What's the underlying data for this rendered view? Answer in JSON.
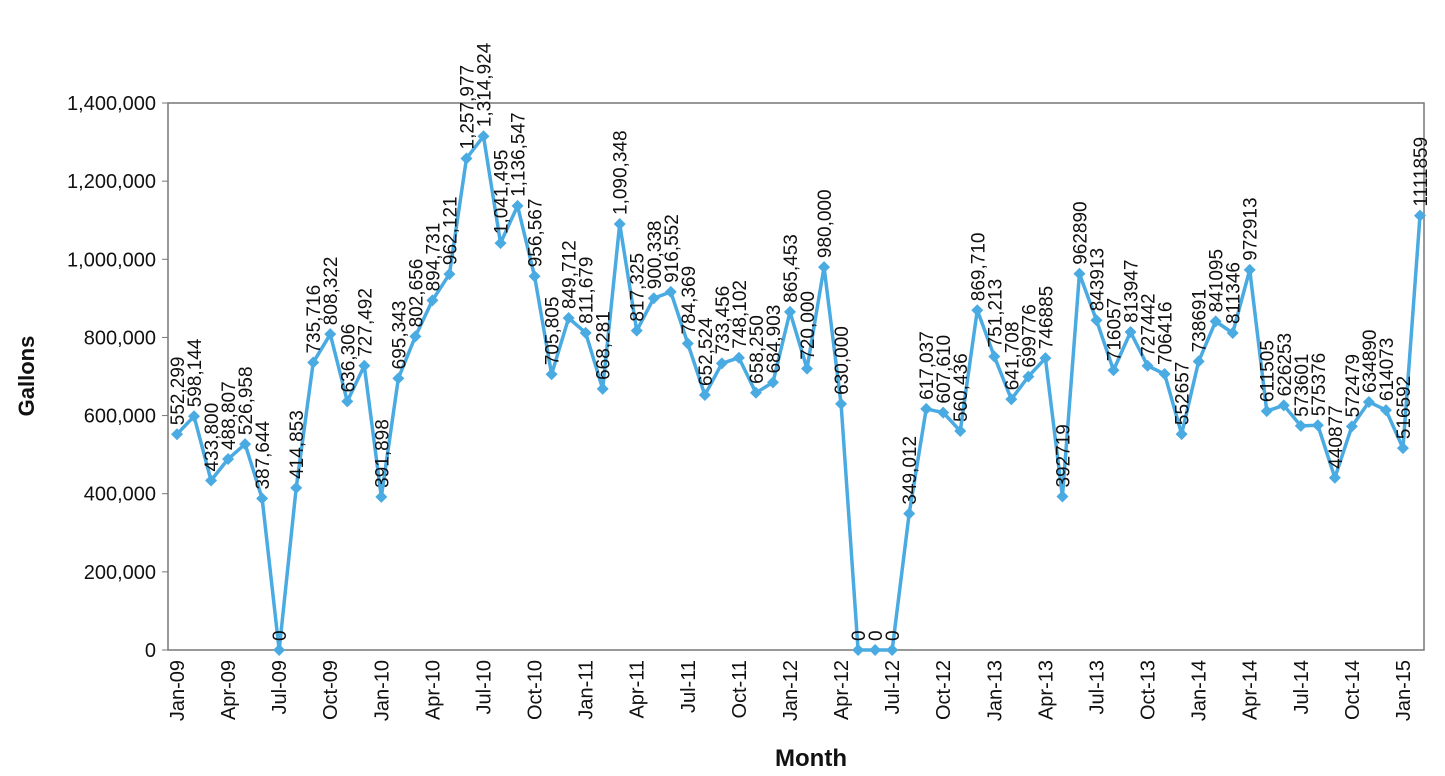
{
  "chart_data": {
    "type": "line",
    "x_label": "Month",
    "y_label": "Gallons",
    "categories": [
      "Jan-09",
      null,
      null,
      "Apr-09",
      null,
      null,
      "Jul-09",
      null,
      null,
      "Oct-09",
      null,
      null,
      "Jan-10",
      null,
      null,
      "Apr-10",
      null,
      null,
      "Jul-10",
      null,
      null,
      "Oct-10",
      null,
      null,
      "Jan-11",
      null,
      null,
      "Apr-11",
      null,
      null,
      "Jul-11",
      null,
      null,
      "Oct-11",
      null,
      null,
      "Jan-12",
      null,
      null,
      "Apr-12",
      null,
      null,
      "Jul-12",
      null,
      null,
      "Oct-12",
      null,
      null,
      "Jan-13",
      null,
      null,
      "Apr-13",
      null,
      null,
      "Jul-13",
      null,
      null,
      "Oct-13",
      null,
      null,
      "Jan-14",
      null,
      null,
      "Apr-14",
      null,
      null,
      "Jul-14",
      null,
      null,
      "Oct-14",
      null,
      null,
      "Jan-15",
      null
    ],
    "series": [
      {
        "color": "#4aaae2",
        "values": [
          552299,
          598144,
          433800,
          488807,
          526958,
          387644,
          0,
          414853,
          735716,
          808322,
          636306,
          727492,
          391898,
          695343,
          802656,
          894731,
          962121,
          1257977,
          1314924,
          1041495,
          1136547,
          956567,
          705805,
          849712,
          811679,
          668281,
          1090348,
          817325,
          900338,
          916552,
          784369,
          652524,
          733456,
          748102,
          658250,
          684903,
          865453,
          720000,
          980000,
          630000,
          0,
          0,
          0,
          349012,
          617037,
          607610,
          560436,
          869710,
          751213,
          641708,
          699776,
          746885,
          392719,
          962890,
          843913,
          716057,
          813947,
          727442,
          706416,
          552657,
          738691,
          841095,
          811346,
          972913,
          611505,
          626253,
          573601,
          575376,
          440877,
          572479,
          634890,
          614073,
          516592,
          1111859
        ],
        "value_labels": [
          "552,299",
          "598,144",
          "433,800",
          "488,807",
          "526,958",
          "387,644",
          "0",
          "414,853",
          "735,716",
          "808,322",
          "636,306",
          "727,492",
          "391,898",
          "695,343",
          "802,656",
          "894,731",
          "962,121",
          "1,257,977",
          "1,314,924",
          "1,041,495",
          "1,136,547",
          "956,567",
          "705,805",
          "849,712",
          "811,679",
          "668,281",
          "1,090,348",
          "817,325",
          "900,338",
          "916,552",
          "784,369",
          "652,524",
          "733,456",
          "748,102",
          "658,250",
          "684,903",
          "865,453",
          "720,000",
          "980,000",
          "630,000",
          "0",
          "0",
          "0",
          "349,012",
          "617,037",
          "607,610",
          "560,436",
          "869,710",
          "751,213",
          "641,708",
          "699776",
          "746885",
          "392719",
          "962890",
          "843913",
          "716057",
          "813947",
          "727442",
          "706416",
          "552657",
          "738691",
          "841095",
          "811346",
          "972913",
          "611505",
          "626253",
          "573601",
          "575376",
          "440877",
          "572479",
          "634890",
          "614073",
          "516592",
          "1111859"
        ]
      }
    ],
    "ylim": [
      0,
      1400000
    ],
    "yticks": [
      0,
      {
        "value": 200000,
        "label": "200,000"
      },
      {
        "value": 400000,
        "label": "400,000"
      },
      {
        "value": 600000,
        "label": "600,000"
      },
      {
        "value": 800000,
        "label": "800,000"
      },
      {
        "value": 1000000,
        "label": "1,000,000"
      },
      {
        "value": 1200000,
        "label": "1,200,000"
      },
      {
        "value": 1400000,
        "label": "1,400,000"
      }
    ]
  }
}
